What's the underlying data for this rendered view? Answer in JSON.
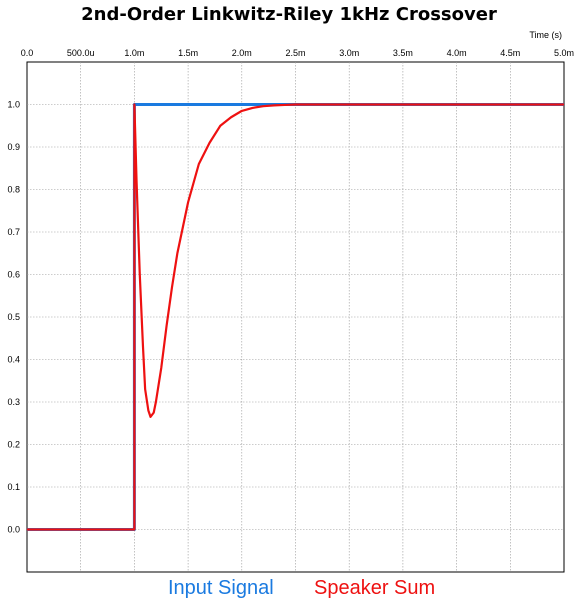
{
  "chart_data": {
    "type": "line",
    "title": "2nd-Order Linkwitz-Riley 1kHz Crossover",
    "x_unit_label": "Time  (s)",
    "x_ticks": [
      {
        "value": 0.0,
        "label": "0.0"
      },
      {
        "value": 0.0005,
        "label": "500.0u"
      },
      {
        "value": 0.001,
        "label": "1.0m"
      },
      {
        "value": 0.0015,
        "label": "1.5m"
      },
      {
        "value": 0.002,
        "label": "2.0m"
      },
      {
        "value": 0.0025,
        "label": "2.5m"
      },
      {
        "value": 0.003,
        "label": "3.0m"
      },
      {
        "value": 0.0035,
        "label": "3.5m"
      },
      {
        "value": 0.004,
        "label": "4.0m"
      },
      {
        "value": 0.0045,
        "label": "4.5m"
      },
      {
        "value": 0.005,
        "label": "5.0m"
      }
    ],
    "y_ticks": [
      "0.0",
      "0.1",
      "0.2",
      "0.3",
      "0.4",
      "0.5",
      "0.6",
      "0.7",
      "0.8",
      "0.9",
      "1.0"
    ],
    "xlim": [
      0,
      0.005
    ],
    "ylim": [
      -0.1,
      1.1
    ],
    "grid": true,
    "legend_position": "bottom",
    "series": [
      {
        "name": "Input Signal",
        "color": "#1a7ae0",
        "x": [
          0,
          0.001,
          0.001,
          0.005
        ],
        "y": [
          0,
          0,
          1,
          1
        ]
      },
      {
        "name": "Speaker Sum",
        "color": "#ee1111",
        "x": [
          0,
          0.001,
          0.001,
          0.00102,
          0.00105,
          0.00108,
          0.0011,
          0.00113,
          0.00115,
          0.00118,
          0.0012,
          0.00125,
          0.0013,
          0.00135,
          0.0014,
          0.0015,
          0.0016,
          0.0017,
          0.0018,
          0.0019,
          0.002,
          0.0021,
          0.0022,
          0.0023,
          0.0024,
          0.0025,
          0.0027,
          0.003,
          0.0035,
          0.004,
          0.005
        ],
        "y": [
          0,
          0,
          1.0,
          0.82,
          0.6,
          0.43,
          0.33,
          0.28,
          0.265,
          0.275,
          0.3,
          0.38,
          0.48,
          0.57,
          0.65,
          0.77,
          0.86,
          0.91,
          0.95,
          0.97,
          0.985,
          0.992,
          0.996,
          0.998,
          0.999,
          1.0,
          1.0,
          1.0,
          1.0,
          1.0,
          1.0
        ]
      }
    ]
  }
}
